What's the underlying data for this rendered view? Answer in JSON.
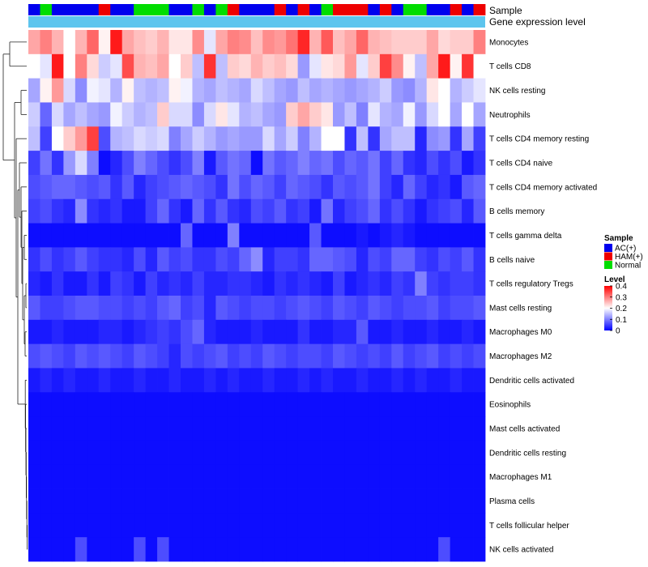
{
  "chart_data": {
    "type": "heatmap",
    "title": "",
    "annotation_labels": {
      "sample": "Sample",
      "gene": "Gene expression level"
    },
    "rows": [
      "Monocytes",
      "T cells CD8",
      "NK cells resting",
      "Neutrophils",
      "T cells CD4 memory resting",
      "T cells CD4 naive",
      "T cells CD4 memory activated",
      "B cells memory",
      "T cells gamma delta",
      "B cells naive",
      "T cells regulatory  Tregs",
      "Mast cells resting",
      "Macrophages M0",
      "Macrophages M2",
      "Dendritic cells activated",
      "Eosinophils",
      "Mast cells activated",
      "Dendritic cells resting",
      "Macrophages M1",
      "Plasma cells",
      "T cells follicular helper",
      "NK cells activated"
    ],
    "sample_groups": [
      "AC",
      "NM",
      "AC",
      "AC",
      "AC",
      "AC",
      "HM",
      "AC",
      "AC",
      "NM",
      "NM",
      "NM",
      "AC",
      "AC",
      "NM",
      "AC",
      "NM",
      "HM",
      "AC",
      "AC",
      "AC",
      "HM",
      "AC",
      "HM",
      "AC",
      "NM",
      "HM",
      "HM",
      "HM",
      "AC",
      "HM",
      "AC",
      "NM",
      "NM",
      "AC",
      "AC",
      "HM",
      "AC",
      "HM"
    ],
    "legend": {
      "sample": {
        "title": "Sample",
        "entries": [
          {
            "key": "AC",
            "label": "AC(+)",
            "color": "#0000ee"
          },
          {
            "key": "HM",
            "label": "HAM(+)",
            "color": "#ee0000"
          },
          {
            "key": "NM",
            "label": "Normal",
            "color": "#00dd00"
          }
        ]
      },
      "level": {
        "title": "Level",
        "ticks": [
          "0.4",
          "0.3",
          "0.2",
          "0.1",
          "0"
        ],
        "range": [
          0,
          0.4
        ],
        "colors": {
          "low": "#0000ff",
          "mid": "#ffffff",
          "high": "#ff0000"
        }
      }
    },
    "gene_annotation_color": "#5dc5ee",
    "values": [
      [
        0.27,
        0.3,
        0.26,
        0.2,
        0.26,
        0.32,
        0.21,
        0.38,
        0.27,
        0.25,
        0.24,
        0.26,
        0.22,
        0.22,
        0.29,
        0.18,
        0.27,
        0.3,
        0.29,
        0.25,
        0.29,
        0.28,
        0.31,
        0.37,
        0.26,
        0.33,
        0.25,
        0.27,
        0.32,
        0.26,
        0.25,
        0.24,
        0.24,
        0.24,
        0.27,
        0.23,
        0.24,
        0.24,
        0.3
      ],
      [
        0.2,
        0.18,
        0.38,
        0.2,
        0.3,
        0.23,
        0.16,
        0.18,
        0.34,
        0.26,
        0.25,
        0.27,
        0.2,
        0.24,
        0.15,
        0.36,
        0.15,
        0.24,
        0.23,
        0.26,
        0.24,
        0.25,
        0.23,
        0.12,
        0.18,
        0.22,
        0.23,
        0.28,
        0.18,
        0.24,
        0.35,
        0.29,
        0.21,
        0.15,
        0.27,
        0.38,
        0.21,
        0.36,
        0.2
      ],
      [
        0.13,
        0.21,
        0.28,
        0.17,
        0.11,
        0.19,
        0.18,
        0.14,
        0.21,
        0.15,
        0.14,
        0.15,
        0.21,
        0.19,
        0.14,
        0.13,
        0.15,
        0.14,
        0.13,
        0.17,
        0.15,
        0.13,
        0.12,
        0.15,
        0.13,
        0.14,
        0.13,
        0.12,
        0.13,
        0.14,
        0.16,
        0.12,
        0.11,
        0.14,
        0.22,
        0.2,
        0.14,
        0.16,
        0.18
      ],
      [
        0.16,
        0.08,
        0.17,
        0.13,
        0.15,
        0.13,
        0.12,
        0.19,
        0.16,
        0.14,
        0.15,
        0.24,
        0.17,
        0.17,
        0.11,
        0.17,
        0.22,
        0.18,
        0.14,
        0.15,
        0.13,
        0.12,
        0.24,
        0.27,
        0.24,
        0.22,
        0.12,
        0.15,
        0.1,
        0.18,
        0.14,
        0.13,
        0.19,
        0.12,
        0.17,
        0.2,
        0.13,
        0.2,
        0.13
      ],
      [
        0.15,
        0.05,
        0.2,
        0.24,
        0.28,
        0.35,
        0.06,
        0.14,
        0.15,
        0.17,
        0.16,
        0.17,
        0.1,
        0.13,
        0.16,
        0.14,
        0.12,
        0.13,
        0.12,
        0.12,
        0.17,
        0.13,
        0.16,
        0.1,
        0.14,
        0.2,
        0.2,
        0.04,
        0.15,
        0.04,
        0.13,
        0.15,
        0.15,
        0.03,
        0.11,
        0.12,
        0.04,
        0.13,
        0.05
      ],
      [
        0.05,
        0.09,
        0.04,
        0.12,
        0.17,
        0.1,
        0.01,
        0.03,
        0.06,
        0.1,
        0.08,
        0.06,
        0.04,
        0.06,
        0.1,
        0.02,
        0.07,
        0.09,
        0.08,
        0.01,
        0.09,
        0.07,
        0.08,
        0.1,
        0.08,
        0.09,
        0.06,
        0.08,
        0.07,
        0.09,
        0.05,
        0.08,
        0.04,
        0.03,
        0.06,
        0.04,
        0.06,
        0.02,
        0.04
      ],
      [
        0.06,
        0.07,
        0.08,
        0.08,
        0.07,
        0.06,
        0.07,
        0.04,
        0.07,
        0.03,
        0.05,
        0.06,
        0.07,
        0.08,
        0.07,
        0.06,
        0.04,
        0.09,
        0.06,
        0.08,
        0.07,
        0.05,
        0.08,
        0.07,
        0.06,
        0.04,
        0.07,
        0.06,
        0.07,
        0.09,
        0.05,
        0.03,
        0.08,
        0.05,
        0.03,
        0.04,
        0.02,
        0.07,
        0.08
      ],
      [
        0.05,
        0.06,
        0.04,
        0.03,
        0.11,
        0.04,
        0.03,
        0.04,
        0.02,
        0.02,
        0.05,
        0.08,
        0.04,
        0.02,
        0.08,
        0.04,
        0.07,
        0.04,
        0.03,
        0.06,
        0.05,
        0.07,
        0.04,
        0.05,
        0.02,
        0.09,
        0.03,
        0.05,
        0.06,
        0.08,
        0.04,
        0.06,
        0.04,
        0.02,
        0.04,
        0.05,
        0.06,
        0.03,
        0.07
      ],
      [
        0.01,
        0.01,
        0.01,
        0.01,
        0.01,
        0.01,
        0.01,
        0.01,
        0.01,
        0.01,
        0.01,
        0.01,
        0.01,
        0.08,
        0.01,
        0.01,
        0.01,
        0.1,
        0.01,
        0.01,
        0.01,
        0.01,
        0.01,
        0.01,
        0.07,
        0.01,
        0.01,
        0.01,
        0.02,
        0.01,
        0.02,
        0.03,
        0.02,
        0.01,
        0.01,
        0.01,
        0.01,
        0.01,
        0.01
      ],
      [
        0.04,
        0.06,
        0.04,
        0.05,
        0.07,
        0.05,
        0.04,
        0.04,
        0.03,
        0.06,
        0.03,
        0.07,
        0.05,
        0.06,
        0.04,
        0.04,
        0.06,
        0.05,
        0.08,
        0.11,
        0.03,
        0.05,
        0.05,
        0.04,
        0.08,
        0.08,
        0.07,
        0.06,
        0.03,
        0.06,
        0.05,
        0.08,
        0.08,
        0.05,
        0.04,
        0.06,
        0.05,
        0.07,
        0.04
      ],
      [
        0.03,
        0.02,
        0.04,
        0.02,
        0.02,
        0.04,
        0.02,
        0.05,
        0.04,
        0.02,
        0.05,
        0.03,
        0.04,
        0.03,
        0.05,
        0.03,
        0.03,
        0.04,
        0.04,
        0.03,
        0.02,
        0.04,
        0.03,
        0.04,
        0.03,
        0.02,
        0.05,
        0.02,
        0.03,
        0.04,
        0.03,
        0.05,
        0.04,
        0.1,
        0.05,
        0.04,
        0.05,
        0.05,
        0.04
      ],
      [
        0.07,
        0.05,
        0.05,
        0.06,
        0.07,
        0.07,
        0.06,
        0.06,
        0.05,
        0.06,
        0.05,
        0.07,
        0.08,
        0.05,
        0.06,
        0.03,
        0.07,
        0.06,
        0.05,
        0.06,
        0.06,
        0.05,
        0.06,
        0.07,
        0.06,
        0.05,
        0.07,
        0.06,
        0.05,
        0.07,
        0.06,
        0.05,
        0.06,
        0.06,
        0.07,
        0.05,
        0.06,
        0.06,
        0.07
      ],
      [
        0.02,
        0.02,
        0.03,
        0.02,
        0.02,
        0.02,
        0.03,
        0.03,
        0.02,
        0.03,
        0.04,
        0.05,
        0.04,
        0.06,
        0.08,
        0.03,
        0.02,
        0.02,
        0.02,
        0.03,
        0.02,
        0.02,
        0.02,
        0.04,
        0.02,
        0.02,
        0.03,
        0.03,
        0.07,
        0.02,
        0.02,
        0.03,
        0.02,
        0.02,
        0.03,
        0.02,
        0.02,
        0.03,
        0.02
      ],
      [
        0.06,
        0.07,
        0.06,
        0.05,
        0.07,
        0.06,
        0.07,
        0.06,
        0.05,
        0.07,
        0.06,
        0.05,
        0.03,
        0.06,
        0.05,
        0.06,
        0.07,
        0.05,
        0.06,
        0.05,
        0.07,
        0.06,
        0.05,
        0.06,
        0.06,
        0.05,
        0.07,
        0.06,
        0.05,
        0.06,
        0.05,
        0.07,
        0.05,
        0.06,
        0.07,
        0.05,
        0.06,
        0.05,
        0.06
      ],
      [
        0.02,
        0.03,
        0.02,
        0.03,
        0.02,
        0.02,
        0.03,
        0.02,
        0.02,
        0.03,
        0.02,
        0.02,
        0.03,
        0.02,
        0.02,
        0.03,
        0.02,
        0.03,
        0.02,
        0.02,
        0.03,
        0.02,
        0.02,
        0.03,
        0.02,
        0.03,
        0.02,
        0.02,
        0.03,
        0.02,
        0.02,
        0.03,
        0.02,
        0.03,
        0.02,
        0.02,
        0.03,
        0.02,
        0.02
      ],
      [
        0.01,
        0.01,
        0.01,
        0.01,
        0.01,
        0.01,
        0.01,
        0.01,
        0.01,
        0.01,
        0.01,
        0.01,
        0.01,
        0.01,
        0.01,
        0.01,
        0.01,
        0.01,
        0.01,
        0.01,
        0.01,
        0.01,
        0.01,
        0.01,
        0.01,
        0.01,
        0.01,
        0.01,
        0.01,
        0.01,
        0.01,
        0.01,
        0.01,
        0.01,
        0.01,
        0.01,
        0.01,
        0.01,
        0.01
      ],
      [
        0.01,
        0.01,
        0.01,
        0.01,
        0.01,
        0.01,
        0.01,
        0.01,
        0.01,
        0.01,
        0.01,
        0.01,
        0.01,
        0.01,
        0.01,
        0.01,
        0.01,
        0.01,
        0.01,
        0.01,
        0.01,
        0.01,
        0.01,
        0.01,
        0.01,
        0.01,
        0.01,
        0.01,
        0.01,
        0.01,
        0.01,
        0.01,
        0.01,
        0.01,
        0.01,
        0.01,
        0.01,
        0.01,
        0.01
      ],
      [
        0.01,
        0.01,
        0.01,
        0.01,
        0.01,
        0.01,
        0.01,
        0.01,
        0.01,
        0.01,
        0.01,
        0.01,
        0.01,
        0.01,
        0.01,
        0.01,
        0.01,
        0.01,
        0.01,
        0.01,
        0.01,
        0.01,
        0.01,
        0.01,
        0.01,
        0.01,
        0.01,
        0.01,
        0.01,
        0.01,
        0.01,
        0.01,
        0.01,
        0.01,
        0.01,
        0.01,
        0.01,
        0.01,
        0.01
      ],
      [
        0.01,
        0.01,
        0.01,
        0.01,
        0.01,
        0.01,
        0.01,
        0.01,
        0.01,
        0.01,
        0.01,
        0.01,
        0.01,
        0.01,
        0.01,
        0.01,
        0.01,
        0.01,
        0.01,
        0.01,
        0.01,
        0.01,
        0.01,
        0.01,
        0.01,
        0.01,
        0.01,
        0.01,
        0.01,
        0.01,
        0.01,
        0.01,
        0.01,
        0.01,
        0.01,
        0.01,
        0.01,
        0.01,
        0.01
      ],
      [
        0.01,
        0.01,
        0.01,
        0.01,
        0.01,
        0.01,
        0.01,
        0.01,
        0.01,
        0.01,
        0.01,
        0.01,
        0.01,
        0.01,
        0.01,
        0.01,
        0.01,
        0.01,
        0.01,
        0.01,
        0.01,
        0.01,
        0.01,
        0.01,
        0.01,
        0.01,
        0.01,
        0.01,
        0.01,
        0.01,
        0.01,
        0.01,
        0.01,
        0.01,
        0.01,
        0.01,
        0.01,
        0.01,
        0.01
      ],
      [
        0.01,
        0.01,
        0.01,
        0.01,
        0.01,
        0.01,
        0.01,
        0.01,
        0.01,
        0.01,
        0.01,
        0.01,
        0.01,
        0.01,
        0.01,
        0.01,
        0.01,
        0.01,
        0.01,
        0.01,
        0.01,
        0.01,
        0.01,
        0.01,
        0.01,
        0.01,
        0.01,
        0.01,
        0.01,
        0.01,
        0.01,
        0.01,
        0.01,
        0.01,
        0.01,
        0.01,
        0.01,
        0.01,
        0.01
      ],
      [
        0.01,
        0.01,
        0.01,
        0.01,
        0.06,
        0.01,
        0.01,
        0.01,
        0.01,
        0.06,
        0.01,
        0.06,
        0.01,
        0.01,
        0.01,
        0.01,
        0.01,
        0.01,
        0.01,
        0.01,
        0.01,
        0.01,
        0.01,
        0.01,
        0.01,
        0.01,
        0.01,
        0.01,
        0.01,
        0.01,
        0.01,
        0.01,
        0.01,
        0.01,
        0.01,
        0.06,
        0.01,
        0.01,
        0.01
      ]
    ]
  }
}
